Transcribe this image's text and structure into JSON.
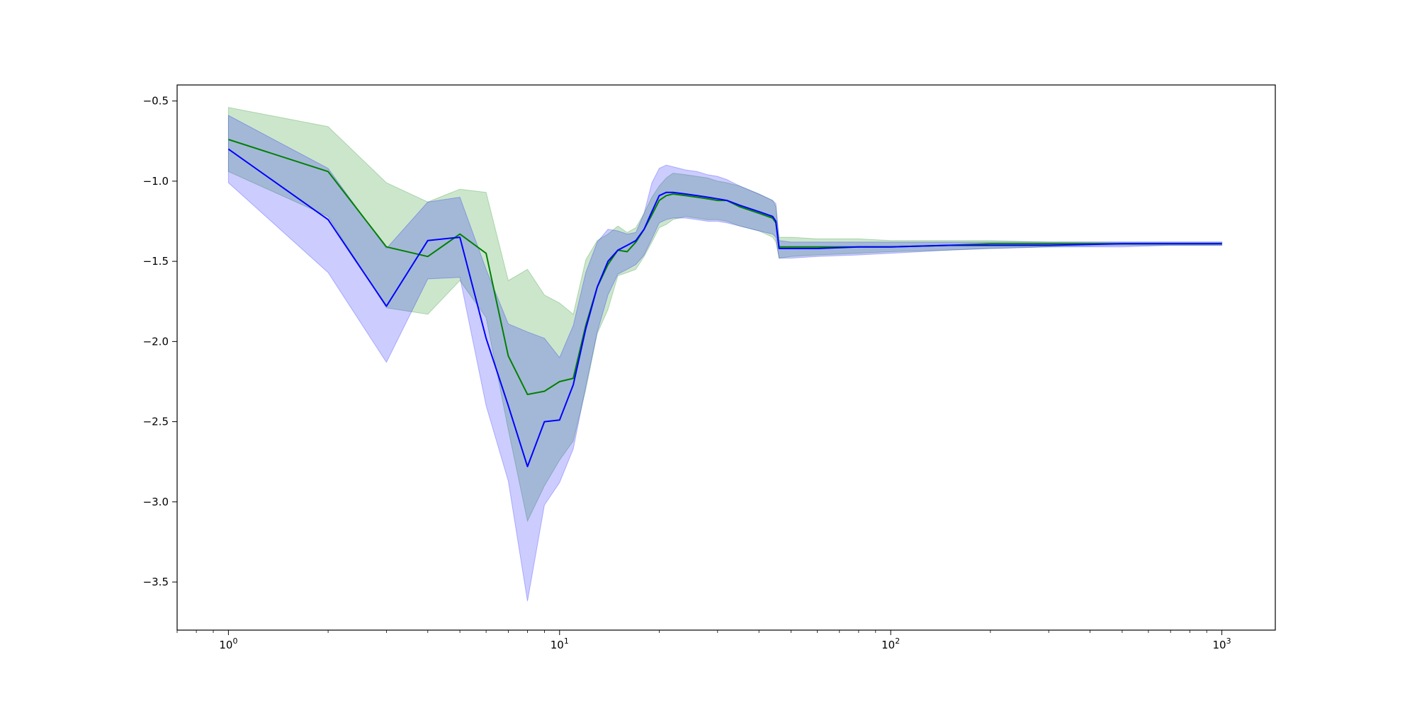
{
  "chart_data": {
    "type": "line",
    "title": "",
    "xlabel": "",
    "ylabel": "",
    "x_scale": "log",
    "xlim": [
      0.7,
      1450
    ],
    "ylim": [
      -3.8,
      -0.4
    ],
    "grid": false,
    "x_ticks": [
      {
        "value": 1,
        "base": "10",
        "exp": "0"
      },
      {
        "value": 10,
        "base": "10",
        "exp": "1"
      },
      {
        "value": 100,
        "base": "10",
        "exp": "2"
      },
      {
        "value": 1000,
        "base": "10",
        "exp": "3"
      }
    ],
    "y_ticks": [
      {
        "value": -0.5,
        "label": "−0.5"
      },
      {
        "value": -1.0,
        "label": "−1.0"
      },
      {
        "value": -1.5,
        "label": "−1.5"
      },
      {
        "value": -2.0,
        "label": "−2.0"
      },
      {
        "value": -2.5,
        "label": "−2.5"
      },
      {
        "value": -3.0,
        "label": "−3.0"
      },
      {
        "value": -3.5,
        "label": "−3.5"
      }
    ],
    "series": [
      {
        "color": "#008000",
        "band_color": "#008000",
        "band_opacity": 0.2,
        "x": [
          1,
          2,
          3,
          4,
          5,
          6,
          7,
          8,
          9,
          10,
          11,
          12,
          13,
          14,
          15,
          16,
          17,
          18,
          19,
          20,
          21,
          22,
          24,
          26,
          28,
          30,
          32,
          35,
          40,
          44,
          45,
          46,
          50,
          60,
          80,
          100,
          150,
          200,
          300,
          500,
          700,
          1000
        ],
        "y": [
          -0.74,
          -0.94,
          -1.41,
          -1.47,
          -1.33,
          -1.45,
          -2.09,
          -2.33,
          -2.31,
          -2.25,
          -2.23,
          -1.9,
          -1.66,
          -1.52,
          -1.43,
          -1.44,
          -1.38,
          -1.3,
          -1.21,
          -1.12,
          -1.09,
          -1.08,
          -1.09,
          -1.1,
          -1.11,
          -1.12,
          -1.12,
          -1.16,
          -1.2,
          -1.23,
          -1.26,
          -1.41,
          -1.41,
          -1.41,
          -1.41,
          -1.41,
          -1.4,
          -1.39,
          -1.39,
          -1.39,
          -1.39,
          -1.39
        ],
        "upper": [
          -0.54,
          -0.66,
          -1.01,
          -1.13,
          -1.05,
          -1.07,
          -1.62,
          -1.55,
          -1.71,
          -1.76,
          -1.83,
          -1.49,
          -1.37,
          -1.33,
          -1.28,
          -1.32,
          -1.29,
          -1.2,
          -1.1,
          -1.03,
          -0.98,
          -0.95,
          -0.96,
          -0.97,
          -0.98,
          -1.0,
          -1.01,
          -1.03,
          -1.08,
          -1.12,
          -1.16,
          -1.35,
          -1.35,
          -1.36,
          -1.36,
          -1.37,
          -1.37,
          -1.37,
          -1.38,
          -1.38,
          -1.38,
          -1.38
        ],
        "lower": [
          -0.94,
          -1.22,
          -1.79,
          -1.83,
          -1.62,
          -1.85,
          -2.55,
          -3.12,
          -2.9,
          -2.74,
          -2.62,
          -2.3,
          -1.95,
          -1.8,
          -1.59,
          -1.57,
          -1.55,
          -1.47,
          -1.38,
          -1.29,
          -1.27,
          -1.24,
          -1.22,
          -1.23,
          -1.24,
          -1.24,
          -1.25,
          -1.28,
          -1.31,
          -1.35,
          -1.38,
          -1.48,
          -1.47,
          -1.46,
          -1.45,
          -1.44,
          -1.43,
          -1.42,
          -1.41,
          -1.4,
          -1.4,
          -1.4
        ]
      },
      {
        "color": "#0000ff",
        "band_color": "#0000ff",
        "band_opacity": 0.2,
        "x": [
          1,
          2,
          3,
          4,
          5,
          6,
          7,
          8,
          9,
          10,
          11,
          12,
          13,
          14,
          15,
          16,
          17,
          18,
          19,
          20,
          21,
          22,
          24,
          26,
          28,
          30,
          32,
          35,
          40,
          44,
          45,
          46,
          50,
          60,
          80,
          100,
          150,
          200,
          300,
          500,
          700,
          1000
        ],
        "y": [
          -0.8,
          -1.24,
          -1.78,
          -1.37,
          -1.35,
          -1.98,
          -2.4,
          -2.78,
          -2.5,
          -2.49,
          -2.27,
          -1.92,
          -1.66,
          -1.5,
          -1.43,
          -1.4,
          -1.37,
          -1.3,
          -1.19,
          -1.09,
          -1.07,
          -1.07,
          -1.08,
          -1.09,
          -1.1,
          -1.11,
          -1.12,
          -1.15,
          -1.19,
          -1.22,
          -1.25,
          -1.42,
          -1.42,
          -1.42,
          -1.41,
          -1.41,
          -1.4,
          -1.4,
          -1.4,
          -1.39,
          -1.39,
          -1.39
        ],
        "upper": [
          -0.59,
          -0.92,
          -1.42,
          -1.13,
          -1.1,
          -1.55,
          -1.89,
          -1.94,
          -1.98,
          -2.1,
          -1.9,
          -1.57,
          -1.38,
          -1.3,
          -1.31,
          -1.33,
          -1.32,
          -1.2,
          -1.01,
          -0.92,
          -0.9,
          -0.91,
          -0.93,
          -0.94,
          -0.96,
          -0.97,
          -0.99,
          -1.03,
          -1.08,
          -1.12,
          -1.14,
          -1.37,
          -1.38,
          -1.38,
          -1.38,
          -1.38,
          -1.38,
          -1.38,
          -1.38,
          -1.38,
          -1.38,
          -1.38
        ],
        "lower": [
          -1.01,
          -1.57,
          -2.13,
          -1.61,
          -1.6,
          -2.4,
          -2.87,
          -3.62,
          -3.02,
          -2.88,
          -2.67,
          -2.28,
          -1.94,
          -1.71,
          -1.58,
          -1.55,
          -1.52,
          -1.46,
          -1.36,
          -1.26,
          -1.24,
          -1.23,
          -1.23,
          -1.24,
          -1.25,
          -1.25,
          -1.26,
          -1.28,
          -1.31,
          -1.33,
          -1.35,
          -1.48,
          -1.48,
          -1.47,
          -1.46,
          -1.45,
          -1.43,
          -1.42,
          -1.41,
          -1.41,
          -1.4,
          -1.4
        ]
      }
    ]
  }
}
